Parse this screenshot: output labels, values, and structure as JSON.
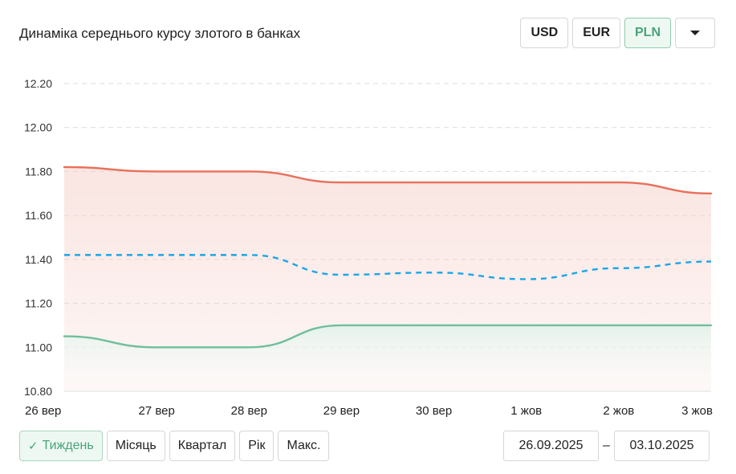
{
  "title": "Динаміка середнього курсу злотого в банках",
  "currencies": [
    "USD",
    "EUR",
    "PLN"
  ],
  "active_currency": "PLN",
  "dropdown_icon": "caret-down-icon",
  "periods": [
    "Тиждень",
    "Місяць",
    "Квартал",
    "Рік",
    "Макс."
  ],
  "active_period": "Тиждень",
  "check_icon": "checkmark-icon",
  "date_from": "26.09.2025",
  "date_to": "03.10.2025",
  "date_separator": "–",
  "chart_data": {
    "type": "line",
    "categories": [
      "26 вер",
      "27 вер",
      "28 вер",
      "29 вер",
      "30 вер",
      "1 жов",
      "2 жов",
      "3 жов"
    ],
    "ylim": [
      10.8,
      12.2
    ],
    "yticks": [
      "12.20",
      "12.00",
      "11.80",
      "11.60",
      "11.40",
      "11.20",
      "11.00",
      "10.80"
    ],
    "grid": true,
    "series": [
      {
        "key": "sell",
        "color": "#e8705a",
        "dashed": false,
        "values": [
          11.82,
          11.8,
          11.8,
          11.75,
          11.75,
          11.75,
          11.75,
          11.7
        ]
      },
      {
        "key": "average",
        "color": "#1aa6e8",
        "dashed": true,
        "values": [
          11.42,
          11.42,
          11.42,
          11.33,
          11.34,
          11.31,
          11.36,
          11.39
        ]
      },
      {
        "key": "buy",
        "color": "#6fbf9a",
        "dashed": false,
        "values": [
          11.05,
          11.0,
          11.0,
          11.1,
          11.1,
          11.1,
          11.1,
          11.1
        ]
      }
    ]
  }
}
